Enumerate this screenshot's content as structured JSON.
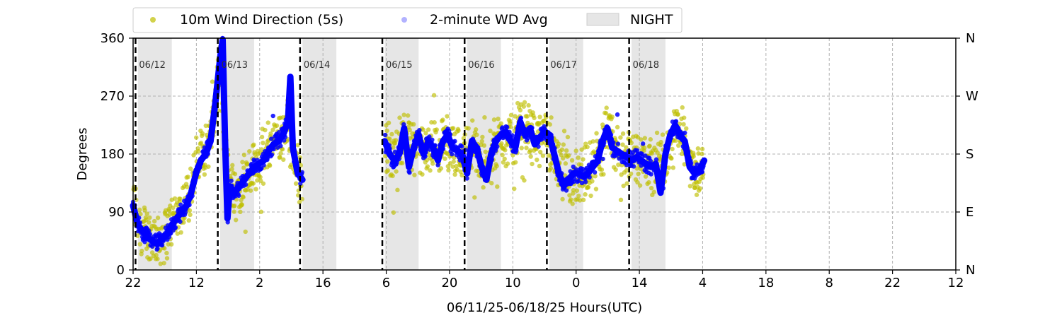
{
  "chart_data": {
    "type": "scatter",
    "ylabel": "Degrees",
    "xlabel": "06/11/25-06/18/25  Hours(UTC)",
    "ylim": [
      0,
      360
    ],
    "yticks": [
      "0",
      "90",
      "180",
      "270",
      "360"
    ],
    "right_ticks": [
      "N",
      "E",
      "S",
      "W",
      "N"
    ],
    "xticks": [
      "22",
      "12",
      "2",
      "16",
      "6",
      "20",
      "10",
      "0",
      "14",
      "4",
      "18",
      "8",
      "22",
      "12"
    ],
    "x_range_hours": [
      0,
      170
    ],
    "day_boundaries": [
      {
        "hour": 0.5,
        "label": "06/12"
      },
      {
        "hour": 17.5,
        "label": "06/13"
      },
      {
        "hour": 34.5,
        "label": "06/14"
      },
      {
        "hour": 51.5,
        "label": "06/15"
      },
      {
        "hour": 68.5,
        "label": "06/16"
      },
      {
        "hour": 85.5,
        "label": "06/17"
      },
      {
        "hour": 102.5,
        "label": "06/18"
      }
    ],
    "night_periods": [
      [
        1,
        8
      ],
      [
        18,
        25
      ],
      [
        35,
        42
      ],
      [
        52,
        59
      ],
      [
        69,
        76
      ],
      [
        86,
        93
      ],
      [
        103,
        110
      ]
    ],
    "data_gap": [
      36,
      52
    ],
    "legend": {
      "placement": "top-center",
      "entries": [
        {
          "name": "10m Wind Direction (5s)",
          "color": "#bfbf00"
        },
        {
          "name": "2-minute WD Avg",
          "color": "#0000ff"
        },
        {
          "name": "NIGHT",
          "color": "#e6e6e6"
        }
      ]
    },
    "series": [
      {
        "name": "2-minute WD Avg",
        "color": "#0000ff",
        "points": [
          [
            0,
            100
          ],
          [
            1,
            70
          ],
          [
            2,
            60
          ],
          [
            3,
            50
          ],
          [
            4,
            45
          ],
          [
            5,
            40
          ],
          [
            6,
            50
          ],
          [
            7,
            55
          ],
          [
            8,
            70
          ],
          [
            9,
            80
          ],
          [
            10,
            90
          ],
          [
            11,
            100
          ],
          [
            12,
            120
          ],
          [
            13,
            150
          ],
          [
            14,
            170
          ],
          [
            15,
            180
          ],
          [
            16,
            200
          ],
          [
            17,
            260
          ],
          [
            18,
            330
          ],
          [
            18.5,
            358
          ],
          [
            19,
            200
          ],
          [
            19.5,
            80
          ],
          [
            20,
            130
          ],
          [
            21,
            120
          ],
          [
            22,
            130
          ],
          [
            23,
            140
          ],
          [
            24,
            150
          ],
          [
            25,
            160
          ],
          [
            26,
            165
          ],
          [
            27,
            170
          ],
          [
            28,
            185
          ],
          [
            29,
            195
          ],
          [
            30,
            200
          ],
          [
            31,
            210
          ],
          [
            32,
            230
          ],
          [
            32.5,
            300
          ],
          [
            33,
            190
          ],
          [
            34,
            150
          ],
          [
            35,
            140
          ],
          [
            52,
            200
          ],
          [
            53,
            180
          ],
          [
            54,
            170
          ],
          [
            55,
            180
          ],
          [
            56,
            220
          ],
          [
            57,
            160
          ],
          [
            58,
            190
          ],
          [
            59,
            210
          ],
          [
            60,
            180
          ],
          [
            61,
            200
          ],
          [
            62,
            190
          ],
          [
            63,
            170
          ],
          [
            64,
            200
          ],
          [
            65,
            210
          ],
          [
            66,
            190
          ],
          [
            67,
            185
          ],
          [
            68,
            180
          ],
          [
            69,
            150
          ],
          [
            70,
            200
          ],
          [
            71,
            190
          ],
          [
            72,
            160
          ],
          [
            73,
            140
          ],
          [
            74,
            180
          ],
          [
            75,
            200
          ],
          [
            76,
            210
          ],
          [
            77,
            215
          ],
          [
            78,
            200
          ],
          [
            79,
            190
          ],
          [
            80,
            230
          ],
          [
            81,
            210
          ],
          [
            82,
            220
          ],
          [
            83,
            195
          ],
          [
            84,
            205
          ],
          [
            85,
            215
          ],
          [
            86,
            210
          ],
          [
            87,
            180
          ],
          [
            88,
            150
          ],
          [
            89,
            130
          ],
          [
            90,
            140
          ],
          [
            91,
            150
          ],
          [
            92,
            150
          ],
          [
            93,
            145
          ],
          [
            94,
            150
          ],
          [
            95,
            160
          ],
          [
            96,
            170
          ],
          [
            97,
            200
          ],
          [
            98,
            220
          ],
          [
            99,
            190
          ],
          [
            100,
            185
          ],
          [
            101,
            180
          ],
          [
            102,
            175
          ],
          [
            103,
            170
          ],
          [
            104,
            175
          ],
          [
            105,
            170
          ],
          [
            106,
            165
          ],
          [
            107,
            160
          ],
          [
            108,
            165
          ],
          [
            109,
            120
          ],
          [
            110,
            180
          ],
          [
            111,
            210
          ],
          [
            112,
            225
          ],
          [
            113,
            210
          ],
          [
            114,
            200
          ],
          [
            115,
            160
          ],
          [
            116,
            150
          ],
          [
            117,
            155
          ],
          [
            118,
            170
          ]
        ]
      },
      {
        "name": "10m Wind Direction (5s)",
        "color": "#bfbf00",
        "points": [
          [
            0,
            110
          ],
          [
            1,
            80
          ],
          [
            2,
            65
          ],
          [
            3,
            55
          ],
          [
            4,
            50
          ],
          [
            5,
            45
          ],
          [
            6,
            55
          ],
          [
            7,
            60
          ],
          [
            8,
            75
          ],
          [
            9,
            85
          ],
          [
            10,
            95
          ],
          [
            11,
            110
          ],
          [
            12,
            130
          ],
          [
            13,
            160
          ],
          [
            14,
            180
          ],
          [
            15,
            190
          ],
          [
            16,
            205
          ],
          [
            17,
            250
          ],
          [
            18,
            320
          ],
          [
            19,
            190
          ],
          [
            20,
            135
          ],
          [
            21,
            125
          ],
          [
            22,
            135
          ],
          [
            23,
            145
          ],
          [
            24,
            155
          ],
          [
            25,
            165
          ],
          [
            26,
            170
          ],
          [
            27,
            175
          ],
          [
            28,
            190
          ],
          [
            29,
            200
          ],
          [
            30,
            205
          ],
          [
            31,
            215
          ],
          [
            32,
            220
          ],
          [
            33,
            185
          ],
          [
            34,
            150
          ],
          [
            35,
            140
          ],
          [
            52,
            200
          ],
          [
            54,
            170
          ],
          [
            56,
            210
          ],
          [
            58,
            190
          ],
          [
            60,
            180
          ],
          [
            62,
            195
          ],
          [
            64,
            200
          ],
          [
            66,
            190
          ],
          [
            68,
            180
          ],
          [
            70,
            195
          ],
          [
            72,
            165
          ],
          [
            74,
            180
          ],
          [
            76,
            205
          ],
          [
            78,
            200
          ],
          [
            80,
            220
          ],
          [
            82,
            215
          ],
          [
            84,
            200
          ],
          [
            86,
            205
          ],
          [
            88,
            155
          ],
          [
            90,
            140
          ],
          [
            92,
            150
          ],
          [
            94,
            150
          ],
          [
            96,
            170
          ],
          [
            98,
            215
          ],
          [
            100,
            185
          ],
          [
            102,
            175
          ],
          [
            104,
            175
          ],
          [
            106,
            165
          ],
          [
            108,
            165
          ],
          [
            110,
            175
          ],
          [
            112,
            220
          ],
          [
            114,
            200
          ],
          [
            116,
            150
          ],
          [
            118,
            170
          ]
        ]
      }
    ],
    "grid": true
  }
}
